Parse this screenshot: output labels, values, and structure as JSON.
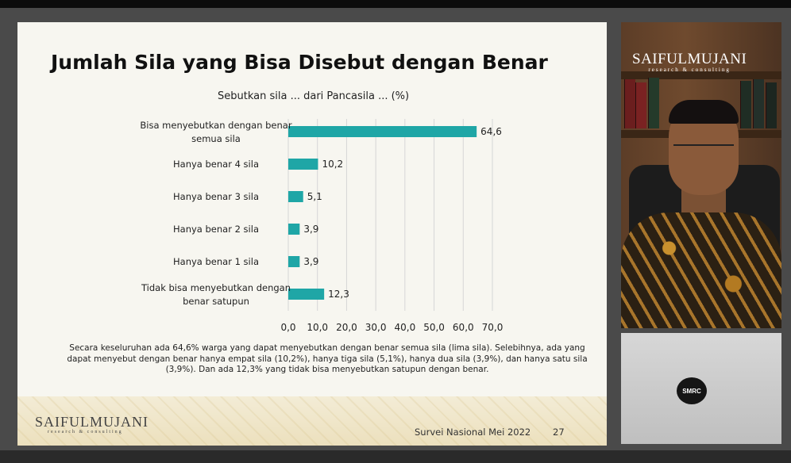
{
  "slide": {
    "title": "Jumlah Sila yang Bisa Disebut dengan Benar",
    "subtitle": "Sebutkan sila ... dari Pancasila ... (%)",
    "note": "Secara keseluruhan ada 64,6% warga yang dapat menyebutkan dengan benar semua sila (lima sila). Selebihnya, ada yang dapat menyebut dengan benar hanya empat sila (10,2%), hanya tiga sila (5,1%), hanya dua sila (3,9%), dan hanya satu sila (3,9%).  Dan ada 12,3% yang tidak bisa menyebutkan satupun dengan benar.",
    "logo_name": "SAIFULMUJANI",
    "logo_tag": "research & consulting",
    "source": "Survei Nasional Mei 2022",
    "page_number": "27"
  },
  "video": {
    "logo_name": "SAIFULMUJANI",
    "logo_tag": "research & consulting",
    "laptop_logo": "SMRC"
  },
  "colors": {
    "bar": "#1fa6a6",
    "grid": "#d6d6d6",
    "text": "#222222"
  },
  "chart_data": {
    "type": "bar",
    "orientation": "horizontal",
    "title": "Jumlah Sila yang Bisa Disebut dengan Benar",
    "subtitle": "Sebutkan sila ... dari Pancasila ... (%)",
    "categories": [
      [
        "Bisa menyebutkan dengan benar",
        "semua sila"
      ],
      [
        "Hanya benar 4 sila"
      ],
      [
        "Hanya benar 3 sila"
      ],
      [
        "Hanya benar 2 sila"
      ],
      [
        "Hanya benar 1 sila"
      ],
      [
        "Tidak bisa menyebutkan dengan",
        "benar satupun"
      ]
    ],
    "values": [
      64.6,
      10.2,
      5.1,
      3.9,
      3.9,
      12.3
    ],
    "value_labels": [
      "64,6",
      "10,2",
      "5,1",
      "3,9",
      "3,9",
      "12,3"
    ],
    "xlim": [
      0,
      70
    ],
    "ticks": [
      0,
      10,
      20,
      30,
      40,
      50,
      60,
      70
    ],
    "tick_labels": [
      "0,0",
      "10,0",
      "20,0",
      "30,0",
      "40,0",
      "50,0",
      "60,0",
      "70,0"
    ],
    "grid": true
  }
}
